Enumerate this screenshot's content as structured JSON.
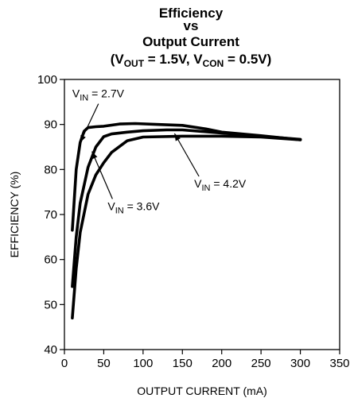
{
  "chart_data": {
    "type": "line",
    "title_lines": [
      "Efficiency",
      "vs",
      "Output Current"
    ],
    "title_cond": {
      "open": "(V",
      "sub1": "OUT",
      "mid": " = 1.5V, V",
      "sub2": "CON",
      "close": " = 0.5V)"
    },
    "xlabel": "OUTPUT CURRENT (mA)",
    "ylabel": "EFFICIENCY (%)",
    "xlim": [
      0,
      350
    ],
    "ylim": [
      40,
      100
    ],
    "xticks": [
      0,
      50,
      100,
      150,
      200,
      250,
      300,
      350
    ],
    "yticks": [
      40,
      50,
      60,
      70,
      80,
      90,
      100
    ],
    "grid": false,
    "series": [
      {
        "name": "VIN = 2.7V",
        "x": [
          10,
          15,
          20,
          25,
          30,
          40,
          50,
          70,
          90,
          120,
          150,
          180,
          200,
          250,
          300
        ],
        "y": [
          66.5,
          80,
          86,
          88.5,
          89.3,
          89.5,
          89.6,
          90.1,
          90.2,
          90.0,
          89.8,
          89.0,
          88.3,
          87.5,
          86.6
        ]
      },
      {
        "name": "VIN = 3.6V",
        "x": [
          10,
          15,
          20,
          30,
          40,
          50,
          60,
          80,
          100,
          130,
          150,
          200,
          250,
          300
        ],
        "y": [
          54,
          65,
          72.5,
          80.5,
          85,
          87.3,
          87.9,
          88.3,
          88.6,
          88.8,
          88.8,
          88.1,
          87.4,
          86.7
        ]
      },
      {
        "name": "VIN = 4.2V",
        "x": [
          10,
          15,
          20,
          30,
          40,
          50,
          60,
          80,
          100,
          150,
          200,
          250,
          300
        ],
        "y": [
          47,
          58,
          66,
          74.5,
          78.8,
          81.5,
          83.8,
          86.4,
          87.2,
          87.4,
          87.4,
          87.2,
          86.6
        ]
      }
    ],
    "annotations": [
      {
        "prefix": "V",
        "sub": "IN",
        "suffix": " = 2.7V",
        "series": 0,
        "target": [
          20,
          86
        ],
        "text_at": [
          10,
          96
        ]
      },
      {
        "prefix": "V",
        "sub": "IN",
        "suffix": " = 3.6V",
        "series": 1,
        "target": [
          35,
          84
        ],
        "text_at": [
          55,
          71
        ]
      },
      {
        "prefix": "V",
        "sub": "IN",
        "suffix": " = 4.2V",
        "series": 2,
        "target": [
          140,
          88
        ],
        "text_at": [
          165,
          76
        ]
      }
    ]
  }
}
